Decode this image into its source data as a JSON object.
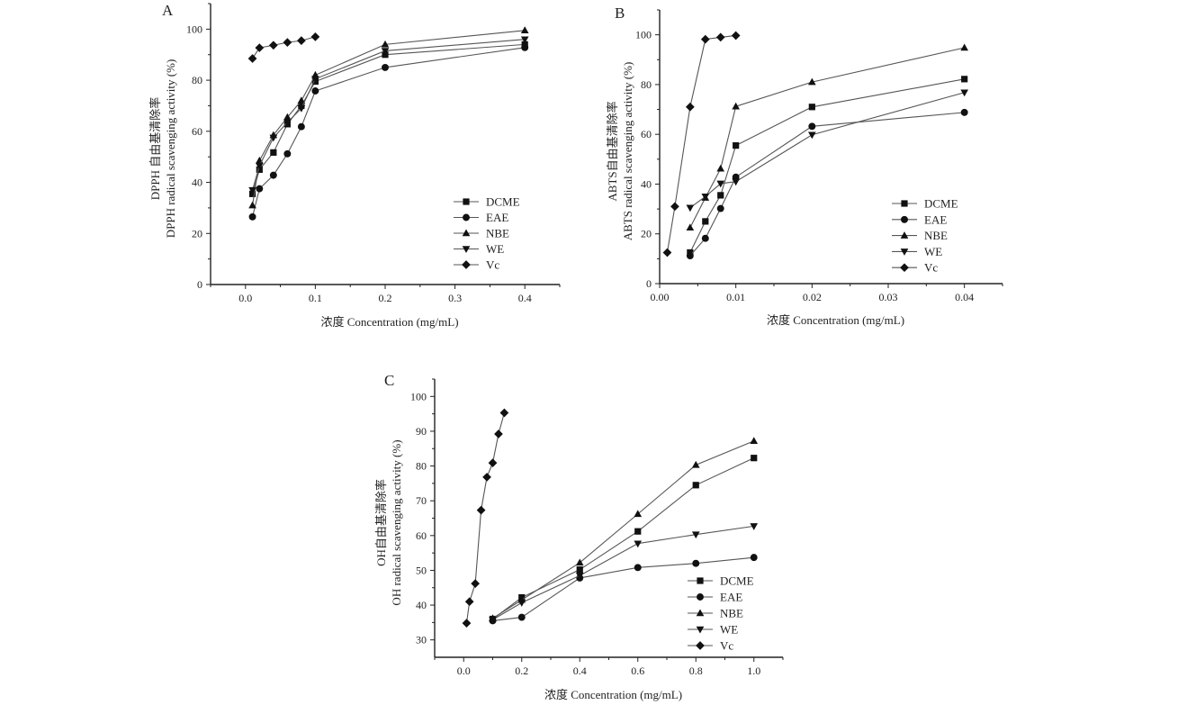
{
  "figure": {
    "series_names": [
      "DCME",
      "EAE",
      "NBE",
      "WE",
      "Vc"
    ],
    "markers": {
      "DCME": "square",
      "EAE": "circle",
      "NBE": "triangle-up",
      "WE": "triangle-down",
      "Vc": "diamond"
    },
    "colors": {
      "line": "#555555",
      "marker": "#111111",
      "axis": "#222222",
      "text": "#222222"
    }
  },
  "chart_data": [
    {
      "type": "line",
      "panel_label": "A",
      "title": "",
      "xlabel": "浓度 Concentration (mg/mL)",
      "ylabel_lines": [
        "DPPH 自由基清除率",
        "DPPH radical scavenging activity (%)"
      ],
      "xlim": [
        -0.05,
        0.45
      ],
      "ylim": [
        0,
        110
      ],
      "xticks": [
        0.0,
        0.1,
        0.2,
        0.3,
        0.4
      ],
      "xtick_labels": [
        "0.0",
        "0.1",
        "0.2",
        "0.3",
        "0.4"
      ],
      "yticks": [
        0,
        20,
        40,
        60,
        80,
        100
      ],
      "ytick_labels": [
        "0",
        "20",
        "40",
        "60",
        "80",
        "100"
      ],
      "grid": false,
      "legend": "bottom-right",
      "series": [
        {
          "name": "DCME",
          "x": [
            0.01,
            0.02,
            0.04,
            0.06,
            0.08,
            0.1,
            0.2,
            0.4
          ],
          "y": [
            35.5,
            45,
            51.7,
            62.8,
            70,
            79.5,
            90,
            94
          ]
        },
        {
          "name": "EAE",
          "x": [
            0.01,
            0.02,
            0.04,
            0.06,
            0.08,
            0.1,
            0.2,
            0.4
          ],
          "y": [
            26.5,
            37.5,
            42.8,
            51.2,
            61.8,
            75.8,
            85,
            92.8
          ]
        },
        {
          "name": "NBE",
          "x": [
            0.01,
            0.02,
            0.04,
            0.06,
            0.08,
            0.1,
            0.2,
            0.4
          ],
          "y": [
            31,
            48.5,
            58.5,
            65.5,
            72,
            82,
            94,
            99.5
          ]
        },
        {
          "name": "WE",
          "x": [
            0.01,
            0.02,
            0.04,
            0.06,
            0.08,
            0.1,
            0.2,
            0.4
          ],
          "y": [
            37,
            46.5,
            57.5,
            63.5,
            69,
            80.5,
            91.5,
            96
          ]
        },
        {
          "name": "Vc",
          "x": [
            0.01,
            0.02,
            0.04,
            0.06,
            0.08,
            0.1
          ],
          "y": [
            88.5,
            92.7,
            93.7,
            94.8,
            95.5,
            97
          ]
        }
      ]
    },
    {
      "type": "line",
      "panel_label": "B",
      "title": "",
      "xlabel": "浓度 Concentration (mg/mL)",
      "ylabel_lines": [
        "ABTS自由基清除率",
        "ABTS radical scavenging activity (%)"
      ],
      "xlim": [
        0,
        0.045
      ],
      "ylim": [
        0,
        110
      ],
      "xticks": [
        0.0,
        0.01,
        0.02,
        0.03,
        0.04
      ],
      "xtick_labels": [
        "0.00",
        "0.01",
        "0.02",
        "0.03",
        "0.04"
      ],
      "yticks": [
        0,
        20,
        40,
        60,
        80,
        100
      ],
      "ytick_labels": [
        "0",
        "20",
        "40",
        "60",
        "80",
        "100"
      ],
      "grid": false,
      "legend": "bottom-right",
      "series": [
        {
          "name": "DCME",
          "x": [
            0.004,
            0.006,
            0.008,
            0.01,
            0.02,
            0.04
          ],
          "y": [
            12.5,
            25,
            35.5,
            55.5,
            71,
            82.2
          ]
        },
        {
          "name": "EAE",
          "x": [
            0.004,
            0.006,
            0.008,
            0.01,
            0.02,
            0.04
          ],
          "y": [
            11.2,
            18.2,
            30.2,
            42.8,
            63.2,
            68.8
          ]
        },
        {
          "name": "NBE",
          "x": [
            0.004,
            0.006,
            0.008,
            0.01,
            0.02,
            0.04
          ],
          "y": [
            22.5,
            34.5,
            46.2,
            71.2,
            81,
            94.8
          ]
        },
        {
          "name": "WE",
          "x": [
            0.004,
            0.006,
            0.008,
            0.01,
            0.02,
            0.04
          ],
          "y": [
            30.5,
            35,
            40.2,
            41,
            59.8,
            76.8
          ]
        },
        {
          "name": "Vc",
          "x": [
            0.001,
            0.002,
            0.004,
            0.006,
            0.008,
            0.01
          ],
          "y": [
            12.5,
            31,
            71,
            98.2,
            99,
            99.7
          ]
        }
      ]
    },
    {
      "type": "line",
      "panel_label": "C",
      "title": "",
      "xlabel": "浓度 Concentration (mg/mL)",
      "ylabel_lines": [
        "OH自由基清除率",
        "OH radical scavenging activity (%)"
      ],
      "xlim": [
        -0.1,
        1.1
      ],
      "ylim": [
        25,
        105
      ],
      "xticks": [
        0.0,
        0.2,
        0.4,
        0.6,
        0.8,
        1.0
      ],
      "xtick_labels": [
        "0.0",
        "0.2",
        "0.4",
        "0.6",
        "0.8",
        "1.0"
      ],
      "yticks": [
        30,
        40,
        50,
        60,
        70,
        80,
        90,
        100
      ],
      "ytick_labels": [
        "30",
        "40",
        "50",
        "60",
        "70",
        "80",
        "90",
        "100"
      ],
      "grid": false,
      "legend": "bottom-right",
      "series": [
        {
          "name": "DCME",
          "x": [
            0.1,
            0.2,
            0.4,
            0.6,
            0.8,
            1.0
          ],
          "y": [
            36,
            42.2,
            50.2,
            61.2,
            74.5,
            82.3
          ]
        },
        {
          "name": "EAE",
          "x": [
            0.1,
            0.2,
            0.4,
            0.6,
            0.8,
            1.0
          ],
          "y": [
            35.5,
            36.5,
            47.8,
            50.8,
            52,
            53.7
          ]
        },
        {
          "name": "NBE",
          "x": [
            0.1,
            0.2,
            0.4,
            0.6,
            0.8,
            1.0
          ],
          "y": [
            36.2,
            41.5,
            52.2,
            66.2,
            80.3,
            87.2
          ]
        },
        {
          "name": "WE",
          "x": [
            0.1,
            0.2,
            0.4,
            0.6,
            0.8,
            1.0
          ],
          "y": [
            35.8,
            40.7,
            48.5,
            57.7,
            60.3,
            62.7
          ]
        },
        {
          "name": "Vc",
          "x": [
            0.01,
            0.02,
            0.04,
            0.06,
            0.08,
            0.1,
            0.12,
            0.14
          ],
          "y": [
            34.8,
            41,
            46.2,
            67.3,
            76.8,
            80.9,
            89.2,
            95.3
          ]
        }
      ]
    }
  ]
}
